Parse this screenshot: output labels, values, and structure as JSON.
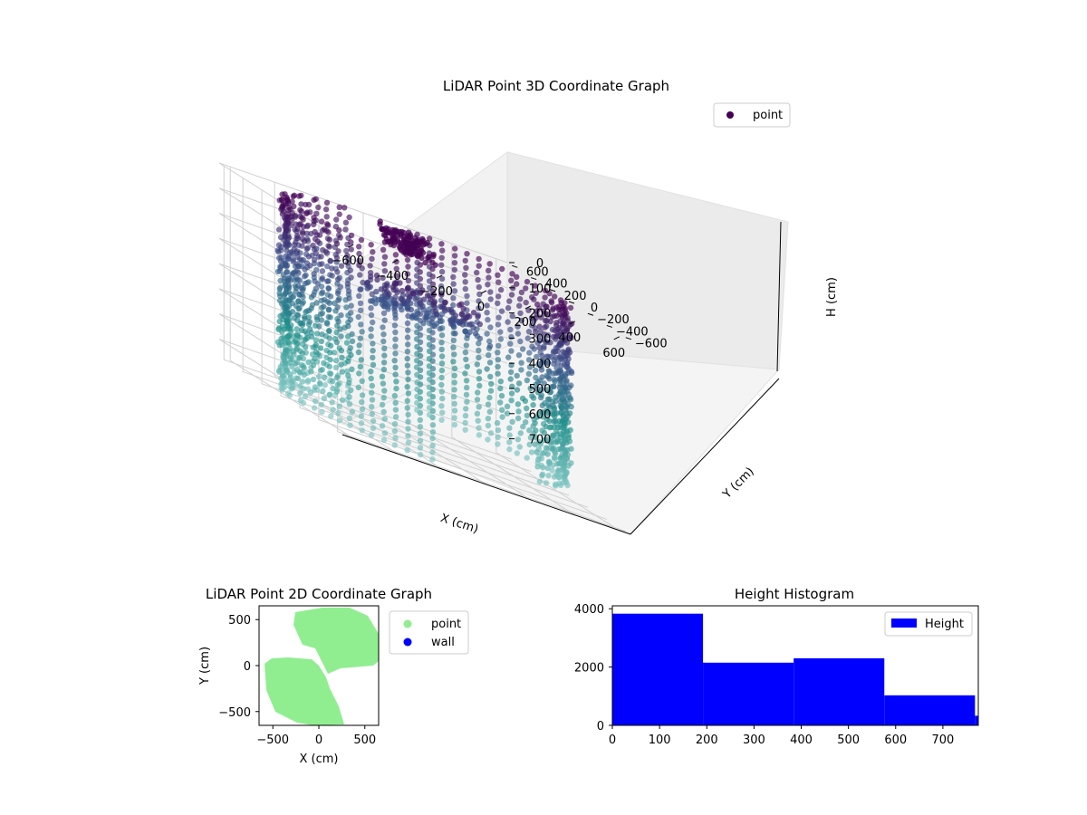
{
  "colors": {
    "point_dark": "#440154",
    "point_mid": "#3b528b",
    "point_teal": "#21918c",
    "point_light": "#7fc5c2",
    "green": "#90ee90",
    "wall": "#0000ff",
    "hist": "#0000ff"
  },
  "chart_data": [
    {
      "type": "scatter",
      "title": "LiDAR Point 3D Coordinate Graph",
      "legend": {
        "placement": "top-right",
        "entries": [
          "point"
        ]
      },
      "xlabel": "X (cm)",
      "ylabel": "Y (cm)",
      "zlabel": "H (cm)",
      "x_ticks": [
        "−600",
        "−400",
        "−200",
        "0",
        "200",
        "400",
        "600"
      ],
      "y_ticks": [
        "−600",
        "−400",
        "−200",
        "0",
        "200",
        "400",
        "600"
      ],
      "z_ticks": [
        "0",
        "100",
        "200",
        "300",
        "400",
        "500",
        "600",
        "700"
      ],
      "xlim": [
        -650,
        650
      ],
      "ylim": [
        -650,
        650
      ],
      "zlim": [
        0,
        770
      ],
      "z_inverted": true,
      "grid": true
    },
    {
      "type": "scatter",
      "title": "LiDAR Point 2D Coordinate Graph",
      "xlabel": "X (cm)",
      "ylabel": "Y (cm)",
      "x_ticks": [
        "−500",
        "0",
        "500"
      ],
      "y_ticks": [
        "500",
        "0",
        "−500"
      ],
      "xlim": [
        -650,
        650
      ],
      "ylim": [
        -650,
        650
      ],
      "legend": {
        "placement": "outside-right",
        "entries": [
          "point",
          "wall"
        ]
      },
      "grid": false
    },
    {
      "type": "bar",
      "title": "Height Histogram",
      "legend": {
        "placement": "top-right",
        "entries": [
          "Height"
        ]
      },
      "bins": [
        {
          "x0": 0,
          "x1": 192,
          "count": 3830
        },
        {
          "x0": 192,
          "x1": 384,
          "count": 2150
        },
        {
          "x0": 384,
          "x1": 576,
          "count": 2300
        },
        {
          "x0": 576,
          "x1": 768,
          "count": 1030
        },
        {
          "x0": 768,
          "x1": 775,
          "count": 330
        }
      ],
      "x_ticks": [
        "0",
        "100",
        "200",
        "300",
        "400",
        "500",
        "600",
        "700"
      ],
      "y_ticks": [
        "0",
        "2000",
        "4000"
      ],
      "xlim": [
        0,
        775
      ],
      "ylim": [
        0,
        4100
      ],
      "grid": false
    }
  ]
}
